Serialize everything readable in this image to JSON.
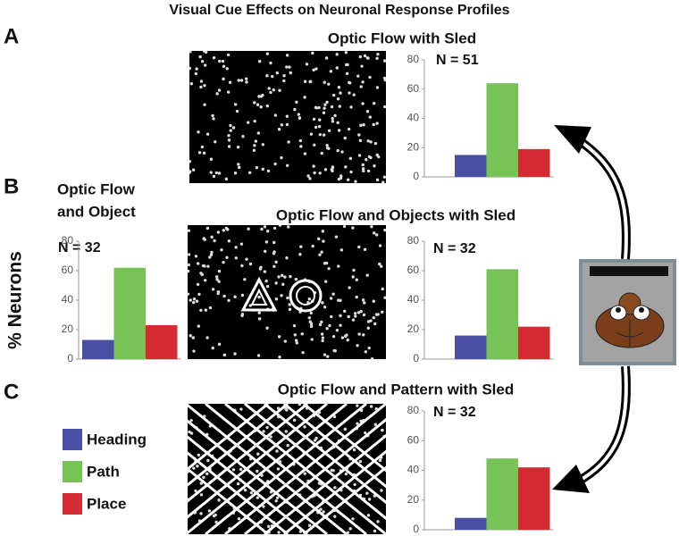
{
  "title": "Visual Cue Effects on Neuronal Response Profiles",
  "panels": [
    "A",
    "B",
    "C"
  ],
  "legend": [
    {
      "name": "Heading",
      "color": "#4a4fa6"
    },
    {
      "name": "Path",
      "color": "#78c356"
    },
    {
      "name": "Place",
      "color": "#d42b32"
    }
  ],
  "chart_data": [
    {
      "type": "bar",
      "title": "Optic Flow with Sled",
      "annotation": "N = 51",
      "values": [
        15,
        64,
        19
      ],
      "ylim": [
        0,
        80
      ],
      "yticks": [
        0,
        20,
        40,
        60,
        80
      ]
    },
    {
      "type": "bar",
      "title": [
        "Optic Flow",
        "and Object"
      ],
      "annotation": "N = 32",
      "ylabel": "% Neurons",
      "values": [
        13,
        62,
        23
      ],
      "ylim": [
        0,
        80
      ],
      "yticks": [
        0,
        20,
        40,
        60,
        80
      ]
    },
    {
      "type": "bar",
      "title": "Optic Flow and Objects with Sled",
      "annotation": "N = 32",
      "values": [
        16,
        61,
        22
      ],
      "ylim": [
        0,
        80
      ],
      "yticks": [
        0,
        20,
        40,
        60,
        80
      ]
    },
    {
      "type": "bar",
      "title": "Optic Flow and Pattern with Sled",
      "annotation": "N = 32",
      "values": [
        8,
        48,
        42
      ],
      "ylim": [
        0,
        80
      ],
      "yticks": [
        0,
        20,
        40,
        60,
        80
      ]
    }
  ]
}
